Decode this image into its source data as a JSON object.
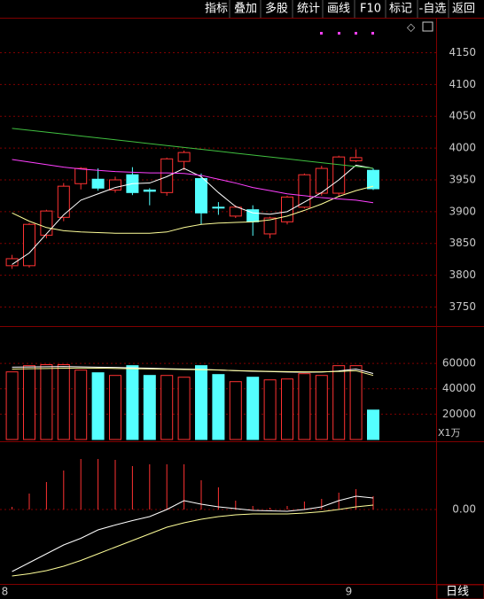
{
  "toolbar": {
    "buttons": [
      "指标",
      "叠加",
      "多股",
      "统计",
      "画线",
      "F10",
      "标记",
      "-自选",
      "返回"
    ]
  },
  "chart_data": [
    {
      "type": "candlestick",
      "categories": [
        "8",
        null,
        null,
        null,
        null,
        null,
        null,
        null,
        null,
        null,
        null,
        null,
        null,
        null,
        null,
        null,
        null,
        null,
        null,
        null,
        "9",
        null
      ],
      "open": [
        3815,
        3815,
        3863,
        3891,
        3944,
        3951,
        3934,
        3958,
        3934,
        3930,
        3979,
        3952,
        3907,
        3893,
        3903,
        3865,
        3884,
        3907,
        3929,
        3929,
        3980,
        3965
      ],
      "high": [
        3832,
        3882,
        3903,
        3945,
        3970,
        3968,
        3955,
        3970,
        3937,
        3985,
        3996,
        3960,
        3915,
        3910,
        3910,
        3892,
        3925,
        3960,
        3972,
        3988,
        3998,
        3968
      ],
      "low": [
        3810,
        3812,
        3858,
        3885,
        3935,
        3933,
        3930,
        3926,
        3910,
        3925,
        3965,
        3880,
        3895,
        3890,
        3862,
        3858,
        3880,
        3905,
        3925,
        3925,
        3978,
        3934
      ],
      "close": [
        3826,
        3880,
        3901,
        3940,
        3968,
        3937,
        3950,
        3930,
        3932,
        3983,
        3993,
        3898,
        3906,
        3907,
        3884,
        3890,
        3923,
        3958,
        3968,
        3986,
        3985,
        3936
      ],
      "up_color": "#ff3232",
      "down_color": "#54ffff",
      "lines": [
        {
          "color": "#ffffff",
          "values": [
            3817,
            3835,
            3865,
            3895,
            3918,
            3928,
            3938,
            3944,
            3945,
            3955,
            3968,
            3955,
            3930,
            3908,
            3898,
            3896,
            3900,
            3915,
            3930,
            3950,
            3973,
            3968
          ]
        },
        {
          "color": "#ffff99",
          "values": [
            3898,
            3885,
            3875,
            3870,
            3868,
            3867,
            3866,
            3866,
            3866,
            3868,
            3875,
            3880,
            3882,
            3883,
            3884,
            3887,
            3893,
            3902,
            3912,
            3924,
            3933,
            3940
          ]
        },
        {
          "color": "#ff40ff",
          "values": [
            3982,
            3978,
            3974,
            3970,
            3967,
            3965,
            3963,
            3962,
            3961,
            3961,
            3960,
            3957,
            3951,
            3945,
            3938,
            3933,
            3928,
            3925,
            3922,
            3920,
            3918,
            3914
          ]
        },
        {
          "color": "#40c040",
          "values": [
            4031,
            4028,
            4025,
            4022,
            4019,
            4016,
            4013,
            4010,
            4007,
            4004,
            4001,
            3998,
            3995,
            3992,
            3989,
            3986,
            3983,
            3980,
            3977,
            3974,
            3971,
            3968
          ]
        }
      ],
      "ylim": [
        3720,
        4205
      ],
      "yticks": [
        3750,
        3800,
        3850,
        3900,
        3950,
        4000,
        4050,
        4100,
        4150
      ],
      "grid": true
    },
    {
      "type": "volume",
      "values": [
        53300,
        58200,
        59000,
        59000,
        54700,
        52600,
        50500,
        58200,
        50500,
        50500,
        49100,
        58200,
        51200,
        45600,
        49100,
        47000,
        47700,
        51900,
        50500,
        58200,
        58200,
        23200
      ],
      "lines": [
        {
          "color": "#ffffff",
          "values": [
            57000,
            57200,
            57400,
            57500,
            57300,
            57000,
            56800,
            56500,
            56200,
            55800,
            55500,
            55300,
            54800,
            54200,
            53800,
            53500,
            53200,
            53000,
            53200,
            54000,
            55500,
            52000
          ]
        },
        {
          "color": "#ffff99",
          "values": [
            55500,
            55800,
            56000,
            56200,
            56300,
            56200,
            56000,
            55800,
            55600,
            55400,
            55200,
            55000,
            54700,
            54300,
            54000,
            53700,
            53500,
            53300,
            53300,
            53600,
            54200,
            50500
          ]
        }
      ],
      "ylim": [
        0,
        88000
      ],
      "yticks": [
        20000,
        40000,
        60000
      ],
      "unit_label": "X1万",
      "grid": true
    },
    {
      "type": "macd",
      "values": [
        0.6,
        3.6,
        6.2,
        8.8,
        11.4,
        11.4,
        11.2,
        9.8,
        10.2,
        10.2,
        10.2,
        6.6,
        5,
        2,
        0.8,
        0.4,
        0.8,
        1.8,
        2.4,
        3.8,
        4.6,
        3
      ],
      "color": "#ff3232",
      "lines": [
        {
          "color": "#ffffff",
          "values": [
            -14,
            -12,
            -10,
            -8,
            -6.5,
            -4.6,
            -3.5,
            -2.5,
            -1.6,
            0,
            2,
            1.2,
            0.6,
            0.2,
            -0.2,
            -0.3,
            -0.4,
            0,
            0.6,
            2,
            3,
            2.6
          ]
        },
        {
          "color": "#ffff99",
          "values": [
            -15,
            -14.5,
            -13.8,
            -12.8,
            -11.5,
            -10,
            -8.5,
            -7,
            -5.5,
            -4,
            -3,
            -2.2,
            -1.6,
            -1.2,
            -1,
            -1,
            -1,
            -0.8,
            -0.5,
            0,
            0.6,
            1
          ]
        }
      ],
      "ylim": [
        -17,
        15
      ],
      "yticks": [
        {
          "value": 0,
          "label": "0.00"
        }
      ],
      "grid": true
    }
  ],
  "footer": {
    "period": "日线"
  }
}
